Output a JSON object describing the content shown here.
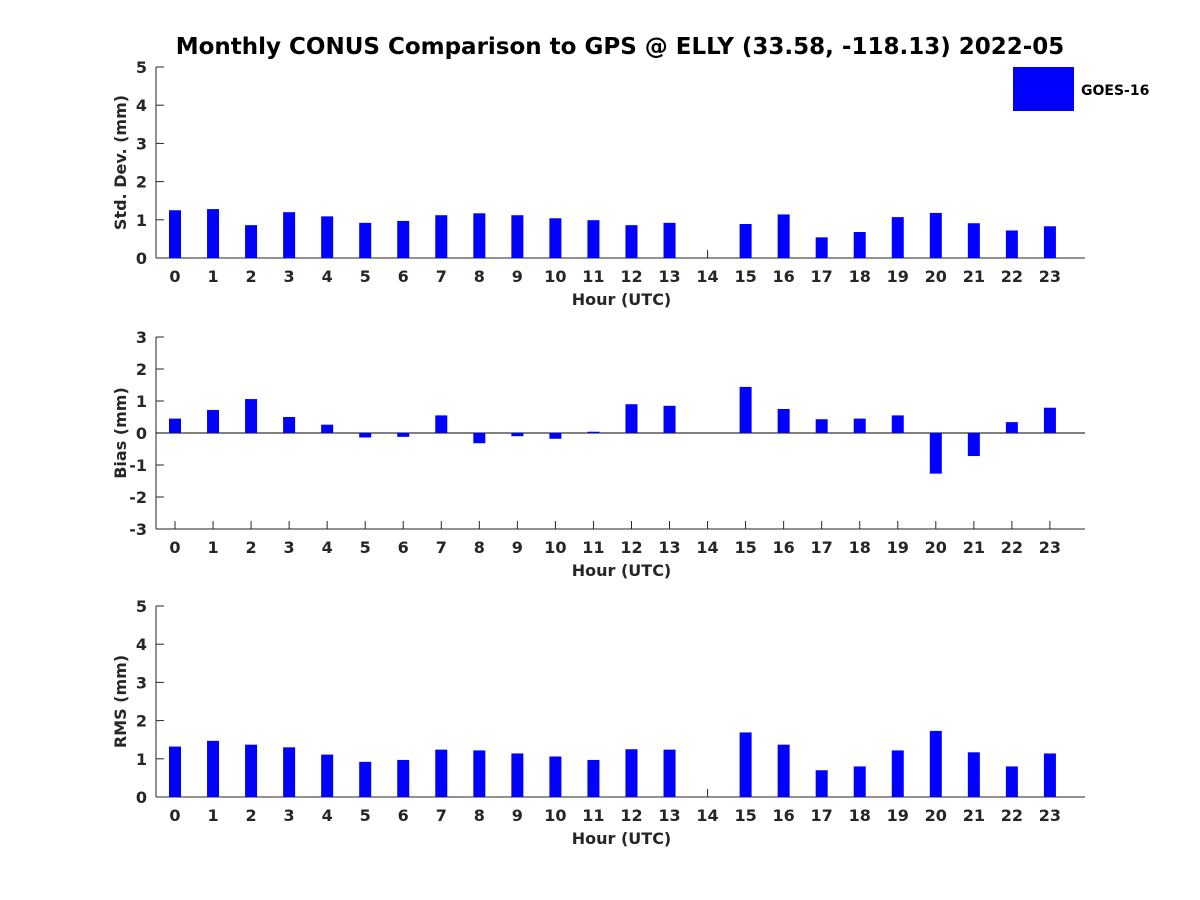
{
  "chart_data": {
    "title": "Monthly CONUS Comparison to GPS @ ELLY (33.58, -118.13) 2022-05",
    "legend": {
      "label": "GOES-16",
      "color": "#0000ff",
      "position": "top-right"
    },
    "panels": [
      {
        "type": "bar",
        "name": "std-dev",
        "ylabel": "Std. Dev. (mm)",
        "xlabel": "Hour (UTC)",
        "ylim": [
          0,
          5
        ],
        "yticks": [
          0,
          1,
          2,
          3,
          4,
          5
        ],
        "categories": [
          "0",
          "1",
          "2",
          "3",
          "4",
          "5",
          "6",
          "7",
          "8",
          "9",
          "10",
          "11",
          "12",
          "13",
          "14",
          "15",
          "16",
          "17",
          "18",
          "19",
          "20",
          "21",
          "22",
          "23"
        ],
        "values": [
          1.25,
          1.28,
          0.86,
          1.2,
          1.09,
          0.92,
          0.97,
          1.12,
          1.17,
          1.12,
          1.04,
          0.99,
          0.86,
          0.92,
          null,
          0.89,
          1.14,
          0.54,
          0.68,
          1.07,
          1.18,
          0.91,
          0.72,
          0.83
        ],
        "zero_line": false
      },
      {
        "type": "bar",
        "name": "bias",
        "ylabel": "Bias (mm)",
        "xlabel": "Hour (UTC)",
        "ylim": [
          -3,
          3
        ],
        "yticks": [
          -3,
          -2,
          -1,
          0,
          1,
          2,
          3
        ],
        "categories": [
          "0",
          "1",
          "2",
          "3",
          "4",
          "5",
          "6",
          "7",
          "8",
          "9",
          "10",
          "11",
          "12",
          "13",
          "14",
          "15",
          "16",
          "17",
          "18",
          "19",
          "20",
          "21",
          "22",
          "23"
        ],
        "values": [
          0.45,
          0.72,
          1.06,
          0.5,
          0.26,
          -0.14,
          -0.12,
          0.55,
          -0.32,
          -0.1,
          -0.18,
          0.04,
          0.9,
          0.85,
          null,
          1.44,
          0.75,
          0.43,
          0.45,
          0.55,
          -1.27,
          -0.72,
          0.34,
          0.79
        ],
        "zero_line": true
      },
      {
        "type": "bar",
        "name": "rms",
        "ylabel": "RMS (mm)",
        "xlabel": "Hour (UTC)",
        "ylim": [
          0,
          5
        ],
        "yticks": [
          0,
          1,
          2,
          3,
          4,
          5
        ],
        "categories": [
          "0",
          "1",
          "2",
          "3",
          "4",
          "5",
          "6",
          "7",
          "8",
          "9",
          "10",
          "11",
          "12",
          "13",
          "14",
          "15",
          "16",
          "17",
          "18",
          "19",
          "20",
          "21",
          "22",
          "23"
        ],
        "values": [
          1.32,
          1.47,
          1.37,
          1.3,
          1.11,
          0.92,
          0.97,
          1.24,
          1.22,
          1.14,
          1.06,
          0.97,
          1.25,
          1.24,
          null,
          1.69,
          1.37,
          0.7,
          0.8,
          1.22,
          1.73,
          1.17,
          0.8,
          1.14
        ],
        "zero_line": false
      }
    ]
  }
}
